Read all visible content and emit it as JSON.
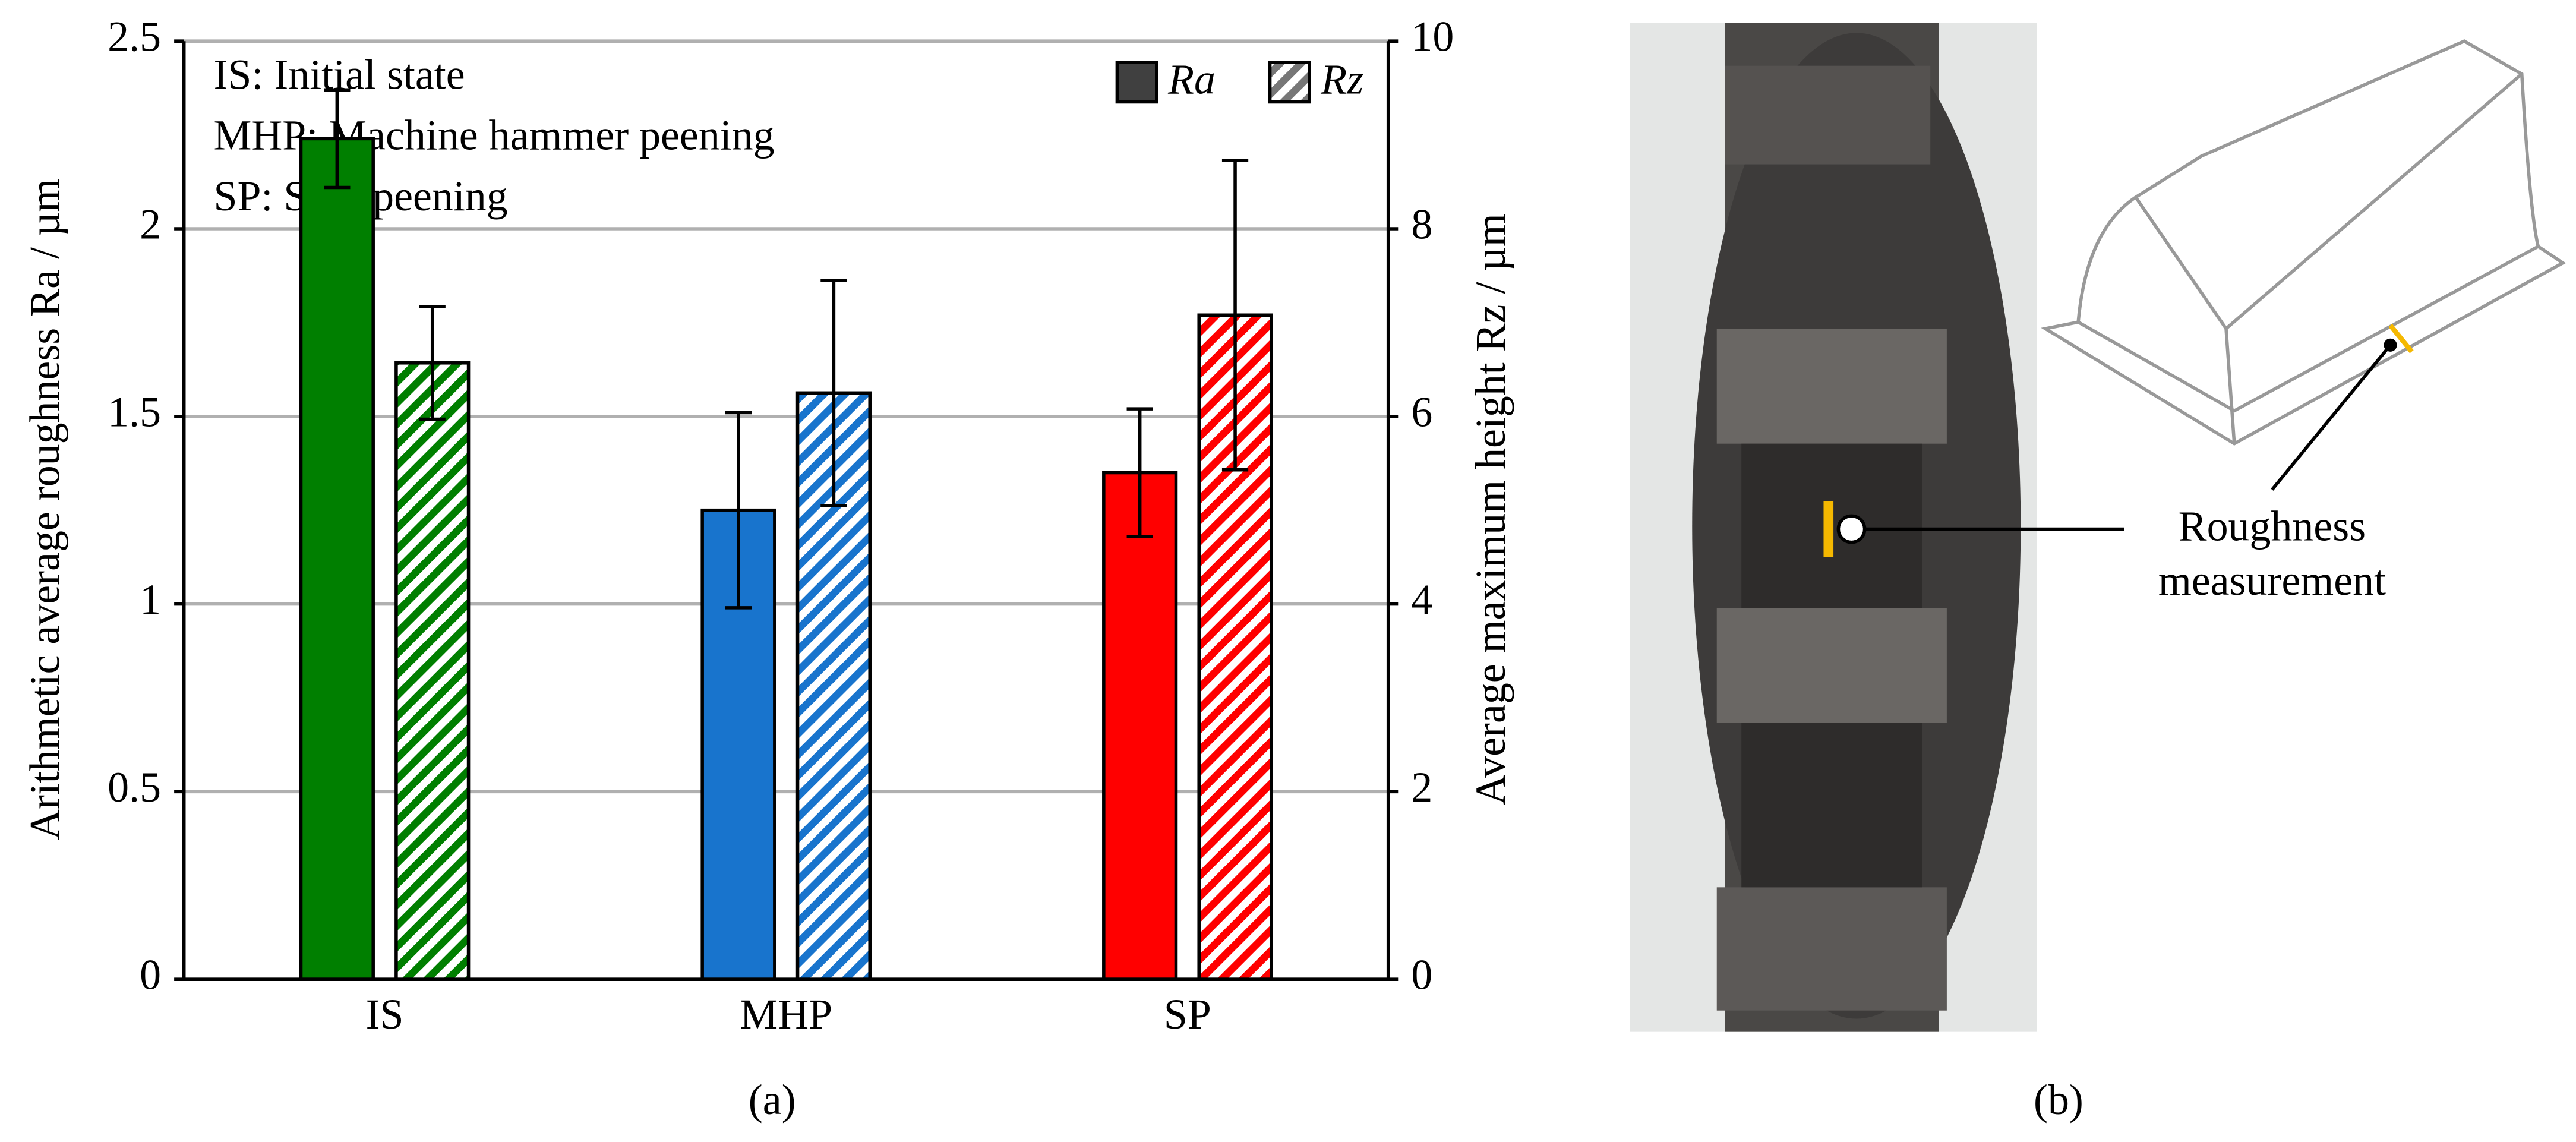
{
  "chart_data": {
    "type": "bar",
    "categories": [
      "IS",
      "MHP",
      "SP"
    ],
    "colors": [
      "#007f00",
      "#1874cd",
      "#ff0000"
    ],
    "series": [
      {
        "name": "Ra",
        "values": [
          2.24,
          1.25,
          1.35
        ],
        "errors": [
          0.13,
          0.26,
          0.17
        ]
      },
      {
        "name": "Rz",
        "axis": "y2",
        "hatched": true,
        "values": [
          6.57,
          6.25,
          7.08
        ],
        "errors": [
          0.6,
          1.2,
          1.65
        ]
      }
    ],
    "ylim": [
      0,
      2.5
    ],
    "yticks": [
      0,
      0.5,
      1,
      1.5,
      2,
      2.5
    ],
    "y2lim": [
      0,
      10
    ],
    "y2ticks": [
      0,
      2,
      4,
      6,
      8,
      10
    ],
    "grid": true,
    "legend": "upper right",
    "y_label": "Arithmetic average roughness Ra / µm",
    "y2_label": "Average maximum height Rz / µm",
    "annotations": [
      "IS: Initial state",
      "MHP: Machine hammer peening",
      "SP: Shot peening"
    ],
    "caption": "(a)"
  },
  "figure_b": {
    "label_lines": [
      "Roughness",
      "measurement"
    ],
    "caption": "(b)"
  }
}
